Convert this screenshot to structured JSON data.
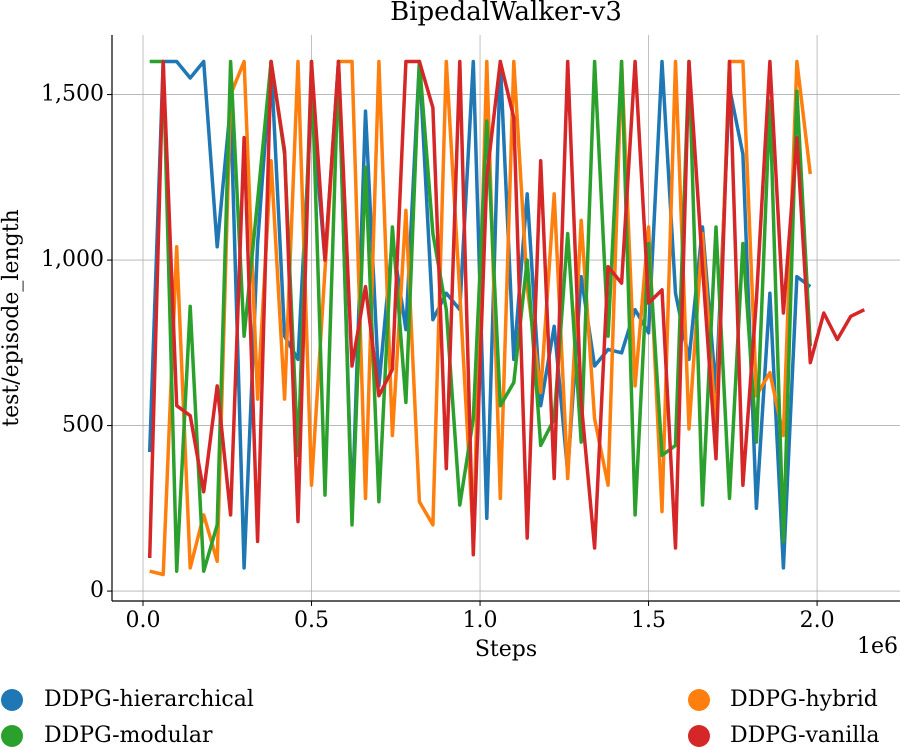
{
  "chart_data": {
    "type": "line",
    "title": "BipedalWalker-v3",
    "x_label": "Steps",
    "y_label": "test/episode_length",
    "x_offset_label": "1e6",
    "xlim": [
      -92000,
      2246000
    ],
    "ylim": [
      -30,
      1680
    ],
    "xticks": [
      {
        "value": 0,
        "label": "0.0"
      },
      {
        "value": 500000,
        "label": "0.5"
      },
      {
        "value": 1000000,
        "label": "1.0"
      },
      {
        "value": 1500000,
        "label": "1.5"
      },
      {
        "value": 2000000,
        "label": "2.0"
      }
    ],
    "yticks": [
      0,
      500,
      {
        "value": 1000,
        "label": "1,000"
      },
      {
        "value": 1500,
        "label": "1,500"
      }
    ],
    "grid": true,
    "legend": "bottom",
    "series": [
      {
        "name": "DDPG-hierarchical",
        "color": "#1f77b4",
        "x": [
          20000,
          60000,
          100000,
          140000,
          180000,
          220000,
          260000,
          300000,
          340000,
          380000,
          420000,
          460000,
          500000,
          540000,
          580000,
          620000,
          660000,
          700000,
          740000,
          780000,
          820000,
          860000,
          900000,
          940000,
          980000,
          1020000,
          1060000,
          1100000,
          1140000,
          1180000,
          1220000,
          1260000,
          1300000,
          1340000,
          1380000,
          1420000,
          1460000,
          1500000,
          1540000,
          1580000,
          1620000,
          1660000,
          1700000,
          1740000,
          1780000,
          1820000,
          1860000,
          1900000,
          1940000,
          1980000
        ],
        "values": [
          420,
          1600,
          1600,
          1550,
          1600,
          1040,
          1470,
          70,
          1050,
          1600,
          770,
          700,
          1480,
          1000,
          1600,
          230,
          1450,
          620,
          1060,
          790,
          1600,
          820,
          900,
          850,
          1600,
          220,
          1600,
          700,
          1200,
          560,
          800,
          360,
          950,
          680,
          730,
          720,
          850,
          780,
          1600,
          900,
          700,
          1100,
          600,
          1520,
          1320,
          250,
          900,
          70,
          950,
          920
        ]
      },
      {
        "name": "DDPG-hybrid",
        "color": "#ff7f0e",
        "x": [
          20000,
          60000,
          100000,
          140000,
          180000,
          220000,
          260000,
          300000,
          340000,
          380000,
          420000,
          460000,
          500000,
          540000,
          580000,
          620000,
          660000,
          700000,
          740000,
          780000,
          820000,
          860000,
          900000,
          940000,
          980000,
          1020000,
          1060000,
          1100000,
          1140000,
          1180000,
          1220000,
          1260000,
          1300000,
          1340000,
          1380000,
          1420000,
          1460000,
          1500000,
          1540000,
          1580000,
          1620000,
          1660000,
          1700000,
          1740000,
          1780000,
          1820000,
          1860000,
          1900000,
          1940000,
          1980000
        ],
        "values": [
          60,
          50,
          1040,
          70,
          230,
          90,
          1500,
          1600,
          580,
          1300,
          580,
          1600,
          320,
          970,
          1600,
          1600,
          280,
          1600,
          470,
          1150,
          270,
          200,
          1600,
          900,
          160,
          1600,
          280,
          1600,
          920,
          600,
          1200,
          340,
          1120,
          520,
          320,
          1600,
          620,
          1100,
          240,
          1600,
          490,
          1080,
          490,
          1600,
          1600,
          590,
          660,
          470,
          1600,
          1260
        ]
      },
      {
        "name": "DDPG-modular",
        "color": "#2ca02c",
        "x": [
          20000,
          60000,
          100000,
          140000,
          180000,
          220000,
          260000,
          300000,
          340000,
          380000,
          420000,
          460000,
          500000,
          540000,
          580000,
          620000,
          660000,
          700000,
          740000,
          780000,
          820000,
          860000,
          900000,
          940000,
          980000,
          1020000,
          1060000,
          1100000,
          1140000,
          1180000,
          1220000,
          1260000,
          1300000,
          1340000,
          1380000,
          1420000,
          1460000,
          1500000,
          1540000,
          1580000,
          1620000,
          1660000,
          1700000,
          1740000,
          1780000,
          1820000,
          1860000,
          1900000,
          1940000,
          1980000
        ],
        "values": [
          1600,
          1600,
          60,
          860,
          60,
          200,
          1600,
          770,
          1180,
          1600,
          1320,
          410,
          1600,
          290,
          1600,
          200,
          1280,
          270,
          1100,
          570,
          1600,
          1080,
          850,
          260,
          520,
          1420,
          560,
          630,
          1000,
          440,
          520,
          1080,
          450,
          1600,
          770,
          1600,
          230,
          1050,
          410,
          440,
          1600,
          260,
          1100,
          280,
          1050,
          450,
          1480,
          150,
          1510,
          740
        ]
      },
      {
        "name": "DDPG-vanilla",
        "color": "#d62728",
        "x": [
          20000,
          60000,
          100000,
          140000,
          180000,
          220000,
          260000,
          300000,
          340000,
          380000,
          420000,
          460000,
          500000,
          540000,
          580000,
          620000,
          660000,
          700000,
          740000,
          780000,
          820000,
          860000,
          900000,
          940000,
          980000,
          1020000,
          1060000,
          1100000,
          1140000,
          1180000,
          1220000,
          1260000,
          1300000,
          1340000,
          1380000,
          1420000,
          1460000,
          1500000,
          1540000,
          1580000,
          1620000,
          1660000,
          1700000,
          1740000,
          1780000,
          1820000,
          1860000,
          1900000,
          1940000,
          1980000,
          2020000,
          2060000,
          2100000,
          2140000
        ],
        "values": [
          100,
          1600,
          560,
          530,
          300,
          620,
          230,
          1370,
          150,
          1600,
          1330,
          210,
          1600,
          1000,
          1600,
          680,
          920,
          590,
          670,
          1600,
          1600,
          1460,
          370,
          1600,
          110,
          1250,
          1600,
          1430,
          160,
          1300,
          340,
          1600,
          570,
          130,
          980,
          930,
          1600,
          870,
          910,
          130,
          1600,
          980,
          400,
          1600,
          320,
          880,
          1600,
          840,
          1370,
          690,
          840,
          760,
          830,
          850
        ]
      }
    ]
  }
}
